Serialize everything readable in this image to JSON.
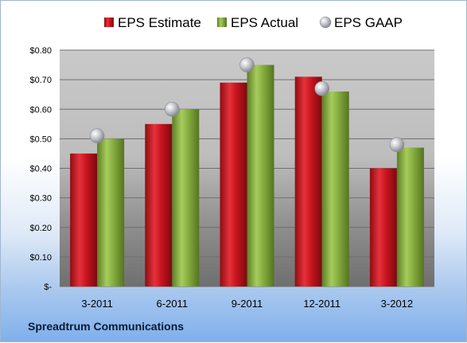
{
  "footer": {
    "company": "Spreadtrum Communications"
  },
  "chart_data": {
    "type": "bar",
    "categories": [
      "3-2011",
      "6-2011",
      "9-2011",
      "12-2011",
      "3-2012"
    ],
    "series": [
      {
        "name": "EPS Estimate",
        "kind": "bar",
        "color": "#c8141e",
        "values": [
          0.45,
          0.55,
          0.69,
          0.71,
          0.4
        ]
      },
      {
        "name": "EPS Actual",
        "kind": "bar",
        "color": "#86ad3f",
        "values": [
          0.5,
          0.6,
          0.75,
          0.66,
          0.47
        ]
      },
      {
        "name": "EPS GAAP",
        "kind": "marker",
        "color": "#b9bcc2",
        "values": [
          0.51,
          0.6,
          0.75,
          0.67,
          0.48
        ]
      }
    ],
    "y_ticks": [
      {
        "value": 0,
        "label": "$-"
      },
      {
        "value": 0.1,
        "label": "$0.10"
      },
      {
        "value": 0.2,
        "label": "$0.20"
      },
      {
        "value": 0.3,
        "label": "$0.30"
      },
      {
        "value": 0.4,
        "label": "$0.40"
      },
      {
        "value": 0.5,
        "label": "$0.50"
      },
      {
        "value": 0.6,
        "label": "$0.60"
      },
      {
        "value": 0.7,
        "label": "$0.70"
      },
      {
        "value": 0.8,
        "label": "$0.80"
      }
    ],
    "ylim": [
      0,
      0.8
    ],
    "grid": true,
    "legend_position": "top"
  }
}
